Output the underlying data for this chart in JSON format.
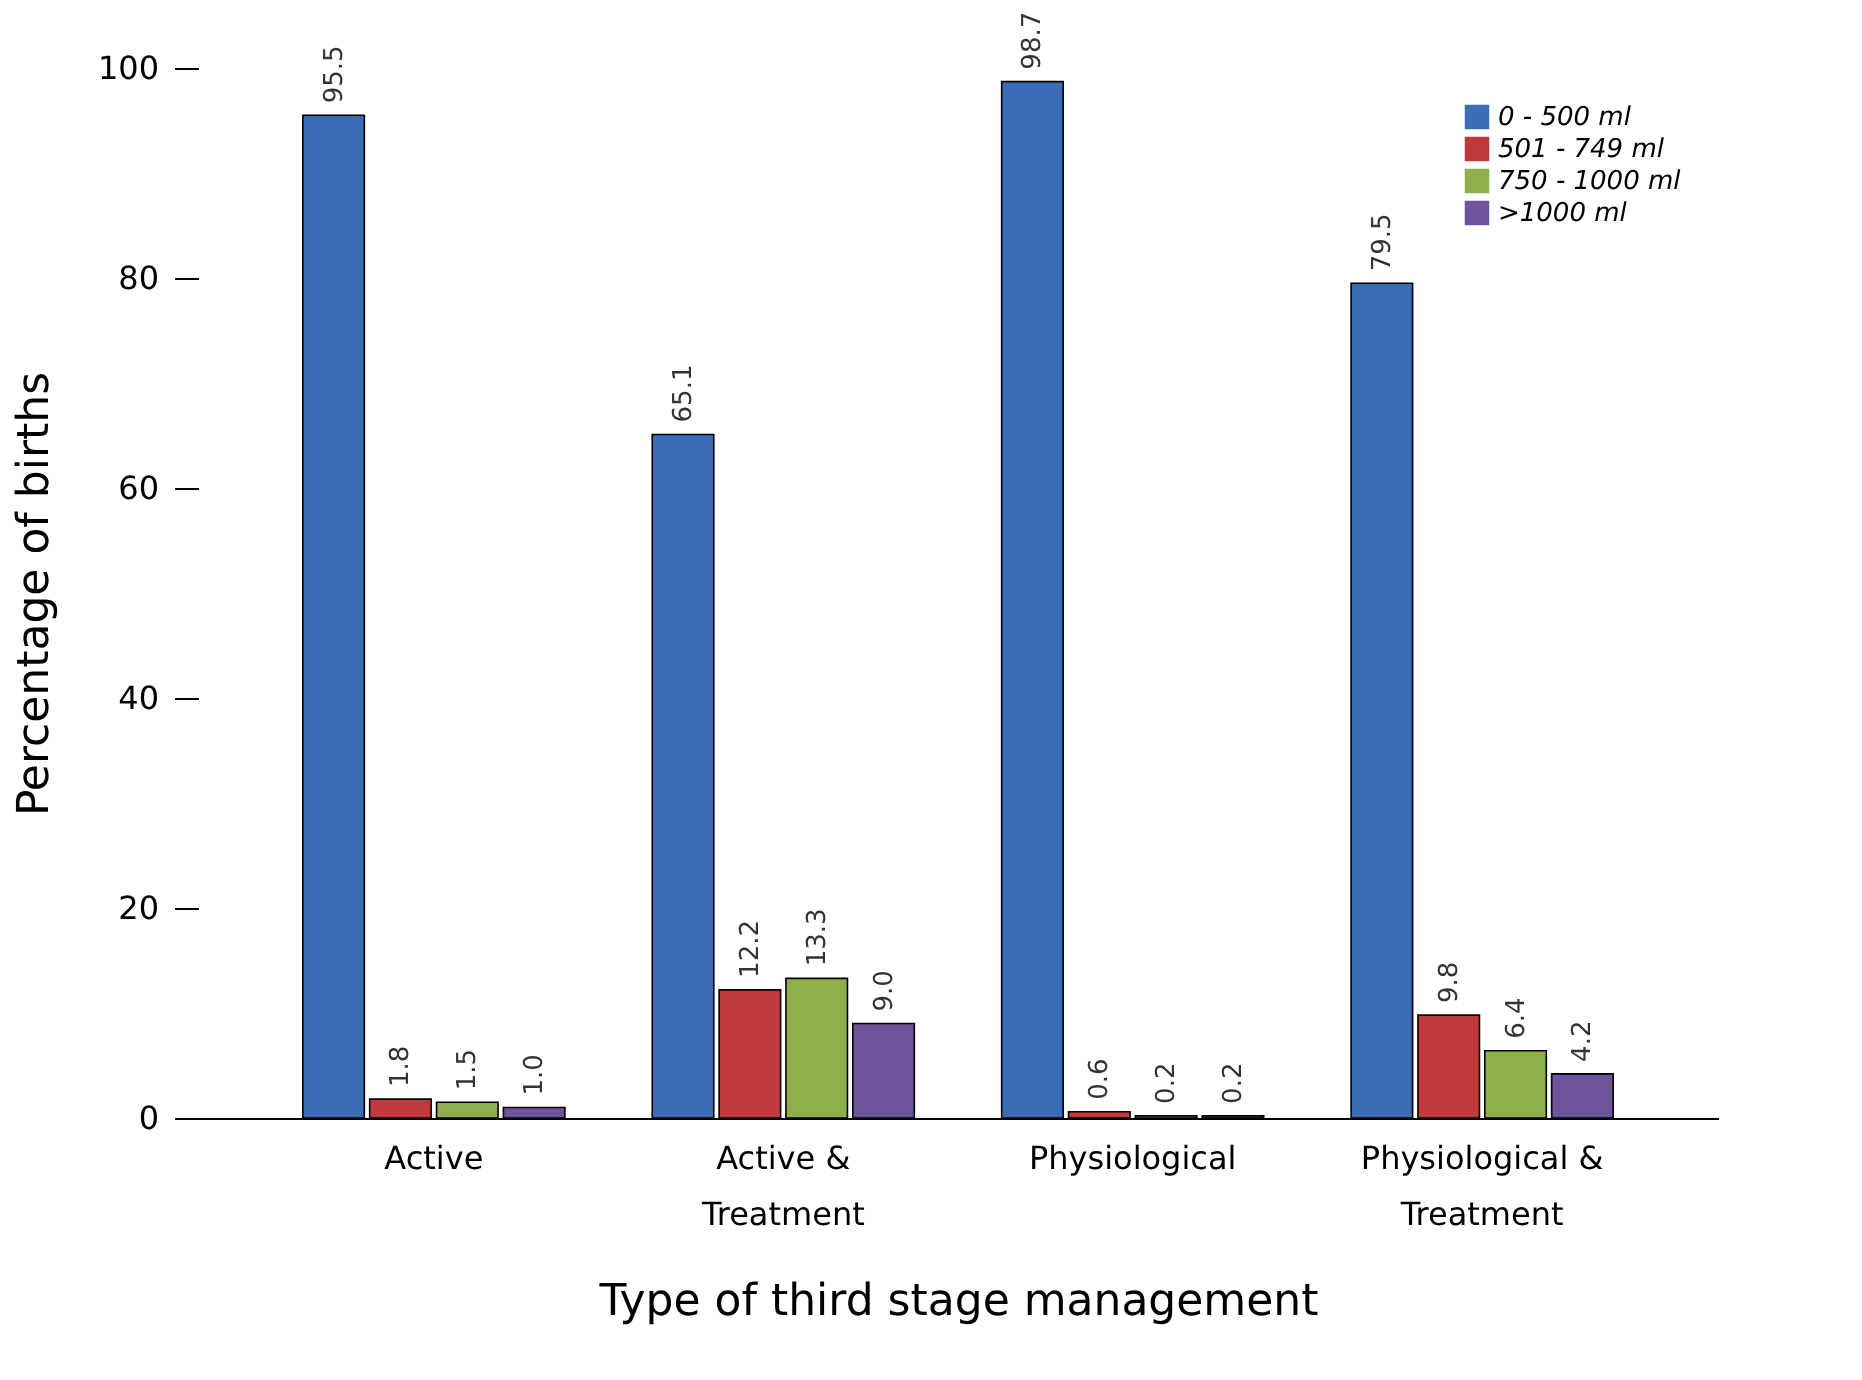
{
  "chart_data": {
    "type": "bar",
    "xlabel": "Type of third stage management",
    "ylabel": "Percentage of births",
    "categories": [
      "Active",
      "Active & Treatment",
      "Physiological",
      "Physiological & Treatment"
    ],
    "series": [
      {
        "name": "0 - 500 ml",
        "color": "#3a6db3",
        "values": [
          95.5,
          65.1,
          98.7,
          79.5
        ],
        "value_labels": [
          "95.5",
          "65.1",
          "98.7",
          "79.5"
        ]
      },
      {
        "name": "501 - 749 ml",
        "color": "#c0393b",
        "values": [
          1.8,
          12.2,
          0.6,
          9.8
        ],
        "value_labels": [
          "1.8",
          "12.2",
          "0.6",
          "9.8"
        ]
      },
      {
        "name": "750 - 1000 ml",
        "color": "#8db04a",
        "values": [
          1.5,
          13.3,
          0.2,
          6.4
        ],
        "value_labels": [
          "1.5",
          "13.3",
          "0.2",
          "6.4"
        ]
      },
      {
        "name": ">1000 ml",
        "color": "#6f539b",
        "values": [
          1.0,
          9.0,
          0.2,
          4.2
        ],
        "value_labels": [
          "1.0",
          "9.0",
          "0.2",
          "4.2"
        ]
      }
    ],
    "ylim": [
      0,
      100
    ],
    "yticks": [
      0,
      20,
      40,
      60,
      80,
      100
    ],
    "grid": false,
    "legend": "top right"
  }
}
